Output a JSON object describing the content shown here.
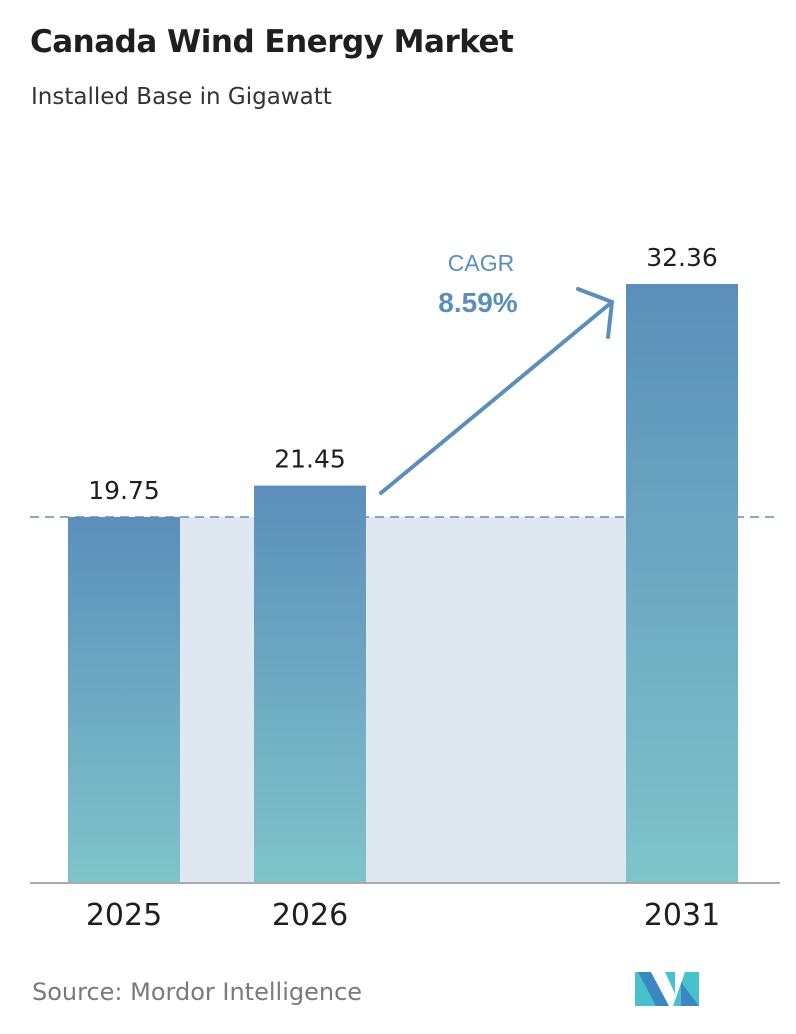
{
  "title": "Canada Wind Energy Market",
  "subtitle": "Installed Base in Gigawatt",
  "source": "Source:  Mordor Intelligence",
  "logo_text": "MI",
  "chart_data": {
    "type": "bar",
    "title": "Canada Wind Energy Market",
    "subtitle": "Installed Base in Gigawatt",
    "categories": [
      "2025",
      "2026",
      "2031"
    ],
    "values": [
      19.75,
      21.45,
      32.36
    ],
    "data_labels": [
      "19.75",
      "21.45",
      "32.36"
    ],
    "annotation": {
      "label": "CAGR",
      "value": "8.59%"
    },
    "reference_line": 19.75,
    "grid": false,
    "legend": "none",
    "colors": {
      "bar_top": "#5b8fba",
      "bar_bottom": "#7fc4ca",
      "shade": "#dfe8f1",
      "annotation": "#5b8fba",
      "axis": "#aaaaaa"
    }
  }
}
